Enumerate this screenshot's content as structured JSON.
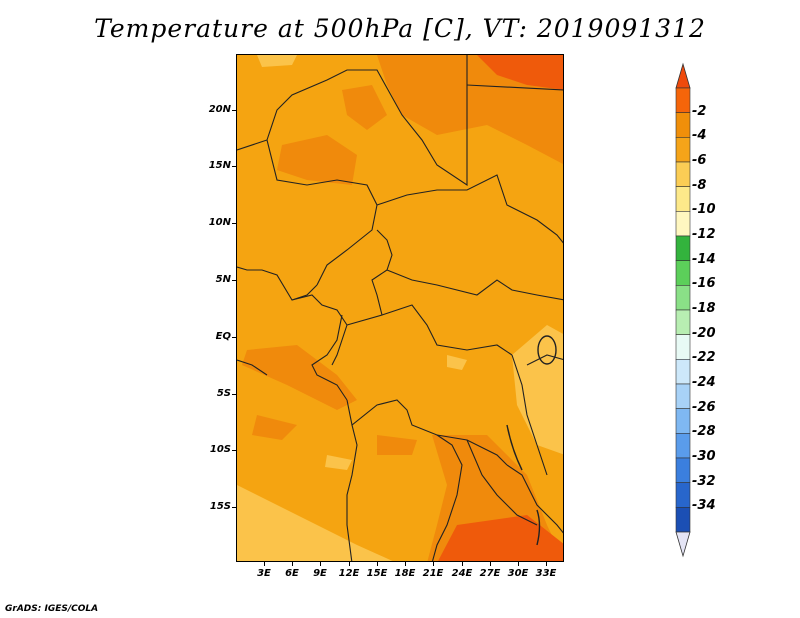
{
  "title": "Temperature at 500hPa [C], VT: 2019091312",
  "footer": "GrADS: IGES/COLA",
  "lat_labels": [
    "20N",
    "15N",
    "10N",
    "5N",
    "EQ",
    "5S",
    "10S",
    "15S"
  ],
  "lon_labels": [
    "3E",
    "6E",
    "9E",
    "12E",
    "15E",
    "18E",
    "21E",
    "24E",
    "27E",
    "30E",
    "33E"
  ],
  "colorbar": {
    "labels": [
      "-2",
      "-4",
      "-6",
      "-8",
      "-10",
      "-12",
      "-14",
      "-16",
      "-18",
      "-20",
      "-22",
      "-24",
      "-26",
      "-28",
      "-30",
      "-32",
      "-34"
    ],
    "colors": [
      "#ef4a0c",
      "#f5650a",
      "#f08f0a",
      "#f5a419",
      "#fbcd55",
      "#fde98a",
      "#fff7c0",
      "#33b33d",
      "#5ccf5a",
      "#8ae087",
      "#b8eeb2",
      "#e8faf5",
      "#cde8fa",
      "#a8d2f7",
      "#7fb8f2",
      "#5a9ceb",
      "#3b7fde",
      "#2866cc",
      "#1b4fb4",
      "#0f2f86"
    ]
  },
  "colors": {
    "field_base": "#f5a411",
    "field_warm": "#f08a0c",
    "field_hot": "#ef5a0b",
    "field_cool": "#fbc34a",
    "borders": "#222222"
  }
}
